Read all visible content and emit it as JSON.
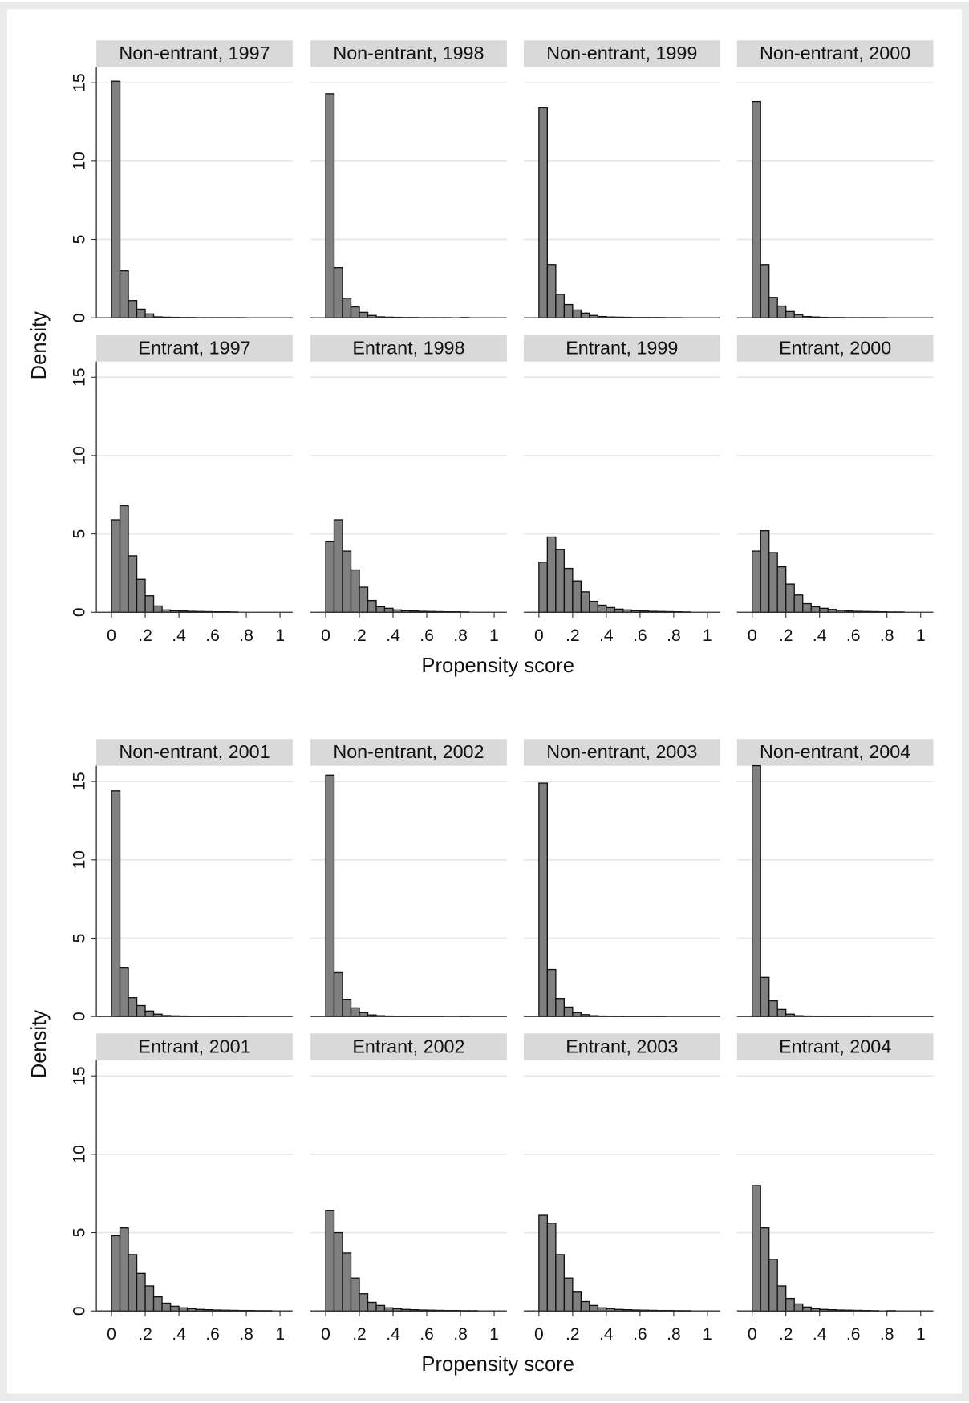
{
  "chart_data": [
    {
      "type": "histogram",
      "xlabel": "Propensity score",
      "ylabel": "Density",
      "xlim": [
        -0.09,
        1.075
      ],
      "ylim": [
        0,
        16
      ],
      "xticks": [
        0,
        {
          "value": 0.2,
          "label": ".2"
        },
        {
          "value": 0.4,
          "label": ".4"
        },
        {
          "value": 0.6,
          "label": ".6"
        },
        {
          "value": 0.8,
          "label": ".8"
        },
        1
      ],
      "yticks": [
        0,
        5,
        10,
        15
      ],
      "grid": true,
      "color": "#808080",
      "bins": [
        0,
        0.05,
        0.1,
        0.15,
        0.2,
        0.25,
        0.3,
        0.35,
        0.4,
        0.45,
        0.5,
        0.55,
        0.6,
        0.65,
        0.7,
        0.75,
        0.8,
        0.85,
        0.9,
        0.95,
        1
      ],
      "panels": [
        {
          "title": "Non-entrant, 1997",
          "values": [
            15.1,
            3.0,
            1.1,
            0.55,
            0.25,
            0.06,
            0.04,
            0.03,
            0.02,
            0.02,
            0.01,
            0.01,
            0.01,
            0.01,
            0.01,
            0.01,
            0,
            0,
            0,
            0
          ]
        },
        {
          "title": "Non-entrant, 1998",
          "values": [
            14.3,
            3.2,
            1.25,
            0.7,
            0.35,
            0.15,
            0.06,
            0.04,
            0.03,
            0.02,
            0.02,
            0.01,
            0.01,
            0.01,
            0.01,
            0,
            0.02,
            0,
            0,
            0
          ]
        },
        {
          "title": "Non-entrant, 1999",
          "values": [
            13.4,
            3.4,
            1.5,
            0.85,
            0.5,
            0.3,
            0.15,
            0.08,
            0.05,
            0.04,
            0.03,
            0.02,
            0.02,
            0.02,
            0.02,
            0.01,
            0.01,
            0,
            0,
            0
          ]
        },
        {
          "title": "Non-entrant, 2000",
          "values": [
            13.8,
            3.4,
            1.3,
            0.75,
            0.4,
            0.2,
            0.08,
            0.05,
            0.03,
            0.02,
            0.02,
            0.01,
            0.01,
            0.01,
            0.01,
            0.01,
            0,
            0,
            0,
            0
          ]
        },
        {
          "title": "Entrant, 1997",
          "values": [
            5.9,
            6.8,
            3.6,
            2.1,
            1.05,
            0.4,
            0.15,
            0.1,
            0.08,
            0.06,
            0.05,
            0.04,
            0.03,
            0.03,
            0.02,
            0,
            0,
            0,
            0,
            0
          ]
        },
        {
          "title": "Entrant, 1998",
          "values": [
            4.5,
            5.9,
            3.9,
            2.7,
            1.6,
            0.75,
            0.35,
            0.25,
            0.15,
            0.1,
            0.08,
            0.06,
            0.05,
            0.04,
            0.03,
            0.03,
            0.02,
            0,
            0,
            0
          ]
        },
        {
          "title": "Entrant, 1999",
          "values": [
            3.2,
            4.8,
            4.0,
            2.8,
            2.0,
            1.3,
            0.7,
            0.45,
            0.3,
            0.2,
            0.15,
            0.1,
            0.08,
            0.06,
            0.05,
            0.04,
            0.03,
            0.02,
            0,
            0
          ]
        },
        {
          "title": "Entrant, 2000",
          "values": [
            3.9,
            5.2,
            3.8,
            2.9,
            1.8,
            1.1,
            0.55,
            0.35,
            0.25,
            0.18,
            0.12,
            0.08,
            0.06,
            0.05,
            0.04,
            0.03,
            0.02,
            0.02,
            0,
            0
          ]
        }
      ]
    },
    {
      "type": "histogram",
      "xlabel": "Propensity score",
      "ylabel": "Density",
      "xlim": [
        -0.09,
        1.075
      ],
      "ylim": [
        0,
        16
      ],
      "xticks": [
        0,
        {
          "value": 0.2,
          "label": ".2"
        },
        {
          "value": 0.4,
          "label": ".4"
        },
        {
          "value": 0.6,
          "label": ".6"
        },
        {
          "value": 0.8,
          "label": ".8"
        },
        1
      ],
      "yticks": [
        0,
        5,
        10,
        15
      ],
      "grid": true,
      "color": "#808080",
      "bins": [
        0,
        0.05,
        0.1,
        0.15,
        0.2,
        0.25,
        0.3,
        0.35,
        0.4,
        0.45,
        0.5,
        0.55,
        0.6,
        0.65,
        0.7,
        0.75,
        0.8,
        0.85,
        0.9,
        0.95,
        1
      ],
      "panels": [
        {
          "title": "Non-entrant, 2001",
          "values": [
            14.4,
            3.1,
            1.2,
            0.7,
            0.35,
            0.15,
            0.06,
            0.04,
            0.03,
            0.02,
            0.02,
            0.01,
            0.01,
            0.01,
            0.01,
            0.01,
            0,
            0,
            0,
            0
          ]
        },
        {
          "title": "Non-entrant, 2002",
          "values": [
            15.4,
            2.8,
            1.1,
            0.55,
            0.25,
            0.1,
            0.05,
            0.03,
            0.02,
            0.02,
            0.01,
            0.01,
            0.01,
            0.01,
            0,
            0,
            0.02,
            0,
            0,
            0
          ]
        },
        {
          "title": "Non-entrant, 2003",
          "values": [
            14.9,
            3.0,
            1.15,
            0.6,
            0.25,
            0.12,
            0.05,
            0.03,
            0.02,
            0.02,
            0.01,
            0.01,
            0.01,
            0.01,
            0.01,
            0,
            0,
            0,
            0,
            0
          ]
        },
        {
          "title": "Non-entrant, 2004",
          "values": [
            16.0,
            2.5,
            1.0,
            0.45,
            0.15,
            0.05,
            0.03,
            0.02,
            0.02,
            0.01,
            0.01,
            0.01,
            0.01,
            0.01,
            0,
            0,
            0,
            0,
            0,
            0
          ]
        },
        {
          "title": "Entrant, 2001",
          "values": [
            4.8,
            5.3,
            3.6,
            2.4,
            1.6,
            0.9,
            0.5,
            0.3,
            0.2,
            0.15,
            0.1,
            0.08,
            0.06,
            0.05,
            0.04,
            0.03,
            0.03,
            0.02,
            0.02,
            0
          ]
        },
        {
          "title": "Entrant, 2002",
          "values": [
            6.4,
            5.0,
            3.7,
            2.1,
            1.1,
            0.55,
            0.35,
            0.2,
            0.15,
            0.1,
            0.08,
            0.06,
            0.05,
            0.04,
            0.03,
            0.03,
            0.02,
            0.02,
            0,
            0
          ]
        },
        {
          "title": "Entrant, 2003",
          "values": [
            6.1,
            5.6,
            3.6,
            2.1,
            1.2,
            0.6,
            0.35,
            0.2,
            0.15,
            0.1,
            0.08,
            0.06,
            0.05,
            0.04,
            0.03,
            0.03,
            0.02,
            0.02,
            0,
            0
          ]
        },
        {
          "title": "Entrant, 2004",
          "values": [
            8.0,
            5.3,
            3.3,
            1.6,
            0.8,
            0.45,
            0.25,
            0.15,
            0.1,
            0.08,
            0.06,
            0.05,
            0.04,
            0.03,
            0.02,
            0,
            0.02,
            0,
            0,
            0
          ]
        }
      ]
    }
  ]
}
